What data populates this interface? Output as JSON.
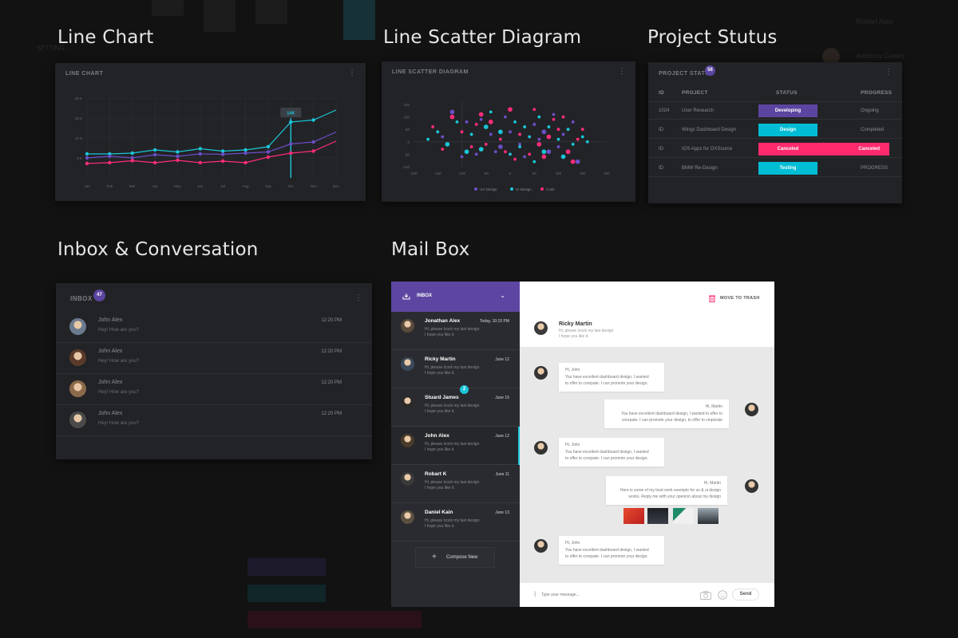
{
  "sections": {
    "line_chart": "Line Chart",
    "scatter": "Line Scatter Diagram",
    "project": "Project Stutus",
    "inbox": "Inbox & Conversation",
    "mailbox": "Mail Box"
  },
  "line_card": {
    "title": "LINE CHART",
    "tooltip": "14K",
    "chart_data": {
      "type": "line",
      "title": "LINE CHART",
      "x": [
        "Jan",
        "Feb",
        "Mar",
        "Apr",
        "May",
        "Jun",
        "Jul",
        "Aug",
        "Sep",
        "Oct",
        "Nov",
        "Dec"
      ],
      "y_ticks": [
        "20 K",
        "15 K",
        "10 K",
        "5 K"
      ],
      "ylim": [
        0,
        20
      ],
      "series": [
        {
          "values": [
            6,
            6,
            6.2,
            7,
            6.5,
            7.3,
            6.7,
            7,
            7.8,
            14,
            14.5,
            17
          ],
          "color": "#1ac6d8"
        },
        {
          "values": [
            5,
            5.4,
            5,
            5.8,
            5.4,
            6,
            5.9,
            6.2,
            6.5,
            8.5,
            9,
            11.5
          ],
          "color": "#6c4ec9"
        },
        {
          "values": [
            3.6,
            3.8,
            4.3,
            3.8,
            4.4,
            3.8,
            4.2,
            3.8,
            5.2,
            6.2,
            6.7,
            9.2
          ],
          "color": "#ff2d78"
        }
      ],
      "highlight_index": 9
    }
  },
  "scatter_card": {
    "title": "LINE SCATTER DIAGRAM",
    "legend": [
      "UX Design",
      "UI Design",
      "Code"
    ],
    "colors": [
      "#6c4ec9",
      "#1ac6d8",
      "#ff2d78"
    ],
    "chart_data": {
      "type": "scatter",
      "x_ticks": [
        "-200",
        "-150",
        "-100",
        "-50",
        "0",
        "50",
        "100",
        "150",
        "200"
      ],
      "y_ticks": [
        "150",
        "100",
        "50",
        "0",
        "-50",
        "-100"
      ],
      "xlim": [
        -200,
        200
      ],
      "ylim": [
        -100,
        150
      ],
      "series": [
        {
          "name": "UX Design",
          "points": [
            [
              -120,
              120
            ],
            [
              -90,
              80
            ],
            [
              -60,
              90
            ],
            [
              -40,
              30
            ],
            [
              -20,
              -20
            ],
            [
              -140,
              20
            ],
            [
              0,
              40
            ],
            [
              20,
              -10
            ],
            [
              50,
              70
            ],
            [
              80,
              -40
            ],
            [
              110,
              30
            ],
            [
              130,
              80
            ],
            [
              140,
              -80
            ],
            [
              -70,
              -50
            ],
            [
              -100,
              -60
            ],
            [
              60,
              10
            ],
            [
              90,
              110
            ],
            [
              -10,
              100
            ],
            [
              30,
              -60
            ],
            [
              100,
              -20
            ],
            [
              -30,
              -40
            ],
            [
              70,
              40
            ]
          ],
          "sizes": [
            3,
            2,
            2,
            2,
            3,
            2,
            2,
            2,
            2,
            3,
            2,
            2,
            3,
            2,
            2,
            2,
            2,
            2,
            2,
            2,
            2,
            3
          ]
        },
        {
          "name": "UI Design",
          "points": [
            [
              -170,
              10
            ],
            [
              -130,
              -10
            ],
            [
              -80,
              30
            ],
            [
              -50,
              60
            ],
            [
              -20,
              40
            ],
            [
              10,
              80
            ],
            [
              40,
              20
            ],
            [
              70,
              -40
            ],
            [
              100,
              10
            ],
            [
              130,
              -10
            ],
            [
              160,
              0
            ],
            [
              -150,
              40
            ],
            [
              -110,
              80
            ],
            [
              -60,
              -30
            ],
            [
              20,
              -20
            ],
            [
              50,
              -80
            ],
            [
              80,
              60
            ],
            [
              110,
              -60
            ],
            [
              150,
              20
            ],
            [
              -40,
              120
            ],
            [
              0,
              -50
            ],
            [
              60,
              100
            ],
            [
              120,
              50
            ],
            [
              -90,
              -40
            ],
            [
              30,
              60
            ]
          ],
          "sizes": [
            2,
            3,
            2,
            3,
            3,
            2,
            2,
            3,
            2,
            2,
            2,
            2,
            2,
            3,
            2,
            2,
            2,
            3,
            2,
            2,
            2,
            2,
            2,
            3,
            2
          ]
        },
        {
          "name": "Code",
          "points": [
            [
              -160,
              60
            ],
            [
              -120,
              100
            ],
            [
              -80,
              -20
            ],
            [
              -40,
              80
            ],
            [
              -10,
              -40
            ],
            [
              20,
              30
            ],
            [
              60,
              -10
            ],
            [
              90,
              90
            ],
            [
              120,
              -40
            ],
            [
              150,
              50
            ],
            [
              -140,
              -30
            ],
            [
              -100,
              40
            ],
            [
              -60,
              110
            ],
            [
              0,
              130
            ],
            [
              40,
              -50
            ],
            [
              80,
              20
            ],
            [
              110,
              100
            ],
            [
              -20,
              10
            ],
            [
              50,
              130
            ],
            [
              130,
              -80
            ],
            [
              -70,
              70
            ],
            [
              10,
              -70
            ],
            [
              70,
              -60
            ],
            [
              100,
              50
            ],
            [
              140,
              10
            ],
            [
              -50,
              -10
            ]
          ],
          "sizes": [
            2,
            3,
            2,
            3,
            2,
            2,
            3,
            2,
            3,
            2,
            2,
            2,
            3,
            3,
            2,
            3,
            2,
            2,
            2,
            3,
            2,
            2,
            3,
            2,
            2,
            2
          ]
        }
      ]
    }
  },
  "project_card": {
    "title": "PROJECT STATUS",
    "badge": "56",
    "headers": [
      "ID",
      "PROJECT",
      "STATUS",
      "PROGRESS"
    ],
    "rows": [
      {
        "id": "1024",
        "project": "User Research",
        "status": "Developing",
        "color": "#5b45a0",
        "progress": "Ongoing"
      },
      {
        "id": "ID",
        "project": "Wings Dashboard Design",
        "status": "Design",
        "color": "#00bcd4",
        "progress": "Completed"
      },
      {
        "id": "ID",
        "project": "IOS Apps for OXSource",
        "status": "Canceled",
        "color": "#ff2a6d",
        "progress": "Canceled"
      },
      {
        "id": "ID",
        "project": "BMW Re-Design",
        "status": "Testing",
        "color": "#00bcd4",
        "progress": "PROGRESS"
      }
    ]
  },
  "inbox_card": {
    "title": "INBOX",
    "badge": "47",
    "items": [
      {
        "name": "John Alex",
        "message": "Hey! How are you?",
        "time": "12:20 PM",
        "avatar": "#6b7a8f"
      },
      {
        "name": "John Alex",
        "message": "Hey! How are you?",
        "time": "12:20 PM",
        "avatar": "#5a3b2a"
      },
      {
        "name": "John Alex",
        "message": "Hey! How are you?",
        "time": "12:20 PM",
        "avatar": "#8a6a4a"
      },
      {
        "name": "John Alex",
        "message": "Hey! How are you?",
        "time": "12:20 PM",
        "avatar": "#4a4a4a"
      }
    ]
  },
  "mailbox": {
    "folder": "INBOX",
    "move_to_trash": "MOVE TO TRASH",
    "compose": "Compose New",
    "message_placeholder": "Type your message...",
    "send": "Send",
    "unread_badge": "2",
    "mails": [
      {
        "name": "Jonathan Alex",
        "date": "Today, 10:15 PM",
        "line1": "Hi, please lcock my last design",
        "line2": "I hope you like it."
      },
      {
        "name": "Ricky Martin",
        "date": "June 12",
        "line1": "Hi, please lcock my last design",
        "line2": "I hope you like it."
      },
      {
        "name": "Stuard James",
        "date": "June 15",
        "line1": "Hi, please lcock my last design",
        "line2": "I hope you like it."
      },
      {
        "name": "John Alex",
        "date": "June 12",
        "line1": "Hi, please lcock my last design",
        "line2": "I hope you like it."
      },
      {
        "name": "Robart K",
        "date": "June 11",
        "line1": "Hi, please lcock my last design",
        "line2": "I hope you like it."
      },
      {
        "name": "Daniel Kain",
        "date": "June 13",
        "line1": "Hi, please lcock my last design",
        "line2": "I hope you like it."
      }
    ],
    "thread_header": {
      "name": "Ricky Martin",
      "line1": "Hi, please lcock my last design",
      "line2": "I hope you like it."
    },
    "messages": [
      {
        "side": "left",
        "greeting": "Hi, John",
        "l1": "You have excellent dashboard design, I wanted",
        "l2": "to offer to coorpate. I can promote your design."
      },
      {
        "side": "right",
        "greeting": "Hi, Martin",
        "l1": "You have excellent dashboard design, I wanted to offer to",
        "l2": "coorpate. I can promote your design, to offer to cmporate"
      },
      {
        "side": "left",
        "greeting": "Hi, John",
        "l1": "You have excellent dashboard design, I wanted",
        "l2": "to offer to coorpate. I can promote your design."
      },
      {
        "side": "right",
        "greeting": "Hi, Martin",
        "l1": "Here is some of my best work exemple for ux & ui design",
        "l2": "works. Reply me with your openion about my design"
      },
      {
        "side": "left",
        "greeting": "Hi, John",
        "l1": "You have excellent dashboard design, I wanted",
        "l2": "to offer to coorpate. I can promote your design."
      }
    ]
  },
  "background": {
    "names": [
      "Robart Alex",
      "Anthony Green"
    ],
    "setting": "SETTING"
  }
}
